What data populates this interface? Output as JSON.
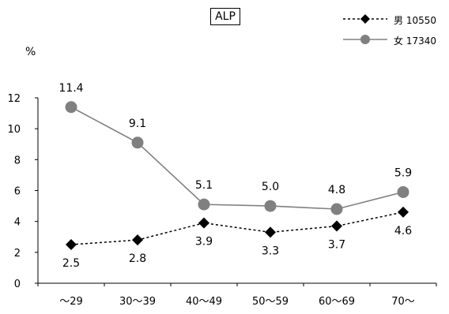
{
  "chart_data": {
    "type": "line",
    "title": "ALP",
    "ylabel": "%",
    "xlabel": "",
    "categories": [
      "～29",
      "30～39",
      "40～49",
      "50～59",
      "60～69",
      "70～"
    ],
    "ylim": [
      0,
      12
    ],
    "yticks": [
      0,
      2,
      4,
      6,
      8,
      10,
      12
    ],
    "grid": false,
    "legend_position": "top-right",
    "series": [
      {
        "name": "男 10550",
        "marker": "diamond",
        "line_style": "dotted",
        "color": "#000000",
        "values": [
          2.5,
          2.8,
          3.9,
          3.3,
          3.7,
          4.6
        ],
        "labels": [
          "2.5",
          "2.8",
          "3.9",
          "3.3",
          "3.7",
          "4.6"
        ]
      },
      {
        "name": "女 17340",
        "marker": "circle",
        "line_style": "solid",
        "color": "#808080",
        "values": [
          11.4,
          9.1,
          5.1,
          5.0,
          4.8,
          5.9
        ],
        "labels": [
          "11.4",
          "9.1",
          "5.1",
          "5.0",
          "4.8",
          "5.9"
        ]
      }
    ]
  }
}
